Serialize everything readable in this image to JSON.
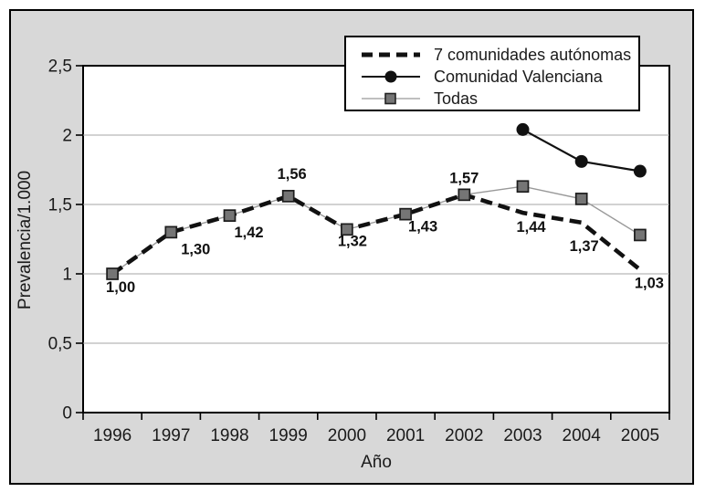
{
  "chart_data": {
    "type": "line",
    "title": "",
    "xlabel": "Año",
    "ylabel": "Prevalencia/1.000",
    "categories": [
      "1996",
      "1997",
      "1998",
      "1999",
      "2000",
      "2001",
      "2002",
      "2003",
      "2004",
      "2005"
    ],
    "ylim": [
      0,
      2.5
    ],
    "yticks": [
      {
        "value": 0,
        "label": "0"
      },
      {
        "value": 0.5,
        "label": "0,5"
      },
      {
        "value": 1,
        "label": "1"
      },
      {
        "value": 1.5,
        "label": "1,5"
      },
      {
        "value": 2,
        "label": "2"
      },
      {
        "value": 2.5,
        "label": "2,5"
      }
    ],
    "grid": true,
    "legend_position": "top-center-overlay",
    "series": [
      {
        "name": "7 comunidades autónomas",
        "line": "dashed",
        "marker": "none",
        "color": "#111111",
        "values": [
          1.0,
          1.3,
          1.42,
          1.56,
          1.32,
          1.43,
          1.57,
          1.44,
          1.37,
          1.03
        ],
        "point_labels": [
          "1,00",
          "1,30",
          "1,42",
          "1,56",
          "1,32",
          "1,43",
          "1,57",
          "1,44",
          "1,37",
          "1,03"
        ],
        "label_dx": [
          9,
          27,
          21,
          4,
          6,
          19,
          0,
          9,
          3,
          10
        ],
        "label_dy": [
          20,
          24,
          24,
          -19,
          18,
          19,
          -13,
          21,
          31,
          20
        ]
      },
      {
        "name": "Comunidad Valenciana",
        "line": "solid",
        "marker": "circle",
        "color": "#111111",
        "values": [
          null,
          null,
          null,
          null,
          null,
          null,
          null,
          2.04,
          1.81,
          1.74
        ]
      },
      {
        "name": "Todas",
        "line": "solid",
        "marker": "square",
        "color": "#999999",
        "marker_color": "#757575",
        "values": [
          1.0,
          1.3,
          1.42,
          1.56,
          1.32,
          1.43,
          1.57,
          1.63,
          1.54,
          1.28
        ]
      }
    ]
  },
  "colors": {
    "canvas_bg": "#d8d8d8",
    "plot_bg": "#ffffff",
    "border": "#000000",
    "grid": "#a6a6a6",
    "text": "#1a1a1a"
  }
}
